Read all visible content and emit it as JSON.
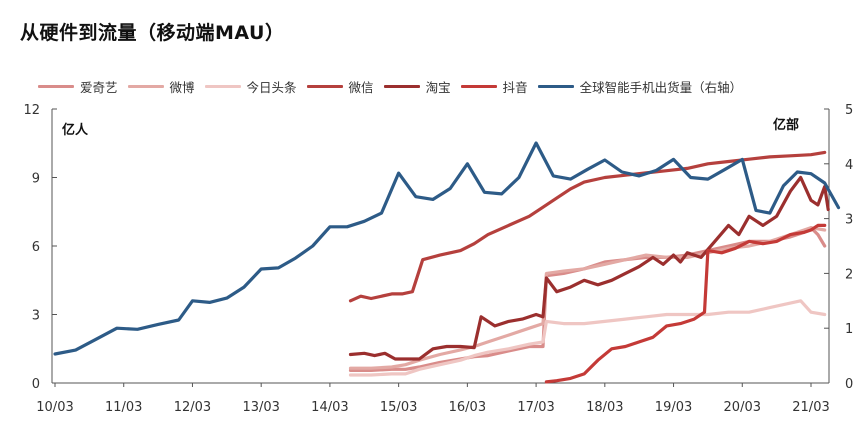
{
  "title": "从硬件到流量（移动端MAU）",
  "chart_data": {
    "type": "line",
    "title": "从硬件到流量（移动端MAU）",
    "left_unit": "亿人",
    "right_unit": "亿部",
    "x_ticks": [
      "10/03",
      "11/03",
      "12/03",
      "13/03",
      "14/03",
      "15/03",
      "16/03",
      "17/03",
      "18/03",
      "19/03",
      "20/03",
      "21/03"
    ],
    "ylim_left": [
      0,
      12
    ],
    "yticks_left": [
      "0",
      "3",
      "6",
      "9",
      "12"
    ],
    "ylim_right": [
      0,
      5
    ],
    "yticks_right": [
      "0",
      "1",
      "2",
      "3",
      "4",
      "5"
    ],
    "grid": false,
    "legend_position": "top",
    "series": [
      {
        "name": "爱奇艺",
        "axis": "left",
        "color": "#d98c8a",
        "points": [
          [
            14.3,
            0.55
          ],
          [
            14.6,
            0.55
          ],
          [
            14.9,
            0.6
          ],
          [
            15.1,
            0.6
          ],
          [
            15.3,
            0.7
          ],
          [
            15.6,
            0.9
          ],
          [
            15.9,
            1.05
          ],
          [
            16.1,
            1.15
          ],
          [
            16.3,
            1.2
          ],
          [
            16.6,
            1.4
          ],
          [
            16.9,
            1.6
          ],
          [
            17.1,
            1.6
          ],
          [
            17.15,
            4.7
          ],
          [
            17.4,
            4.8
          ],
          [
            17.7,
            5.0
          ],
          [
            18.0,
            5.3
          ],
          [
            18.3,
            5.4
          ],
          [
            18.6,
            5.5
          ],
          [
            18.9,
            5.5
          ],
          [
            19.2,
            5.6
          ],
          [
            19.5,
            5.8
          ],
          [
            19.8,
            6.0
          ],
          [
            20.1,
            6.2
          ],
          [
            20.4,
            6.2
          ],
          [
            20.7,
            6.4
          ],
          [
            20.9,
            6.6
          ],
          [
            21.0,
            6.8
          ],
          [
            21.1,
            6.5
          ],
          [
            21.2,
            6.0
          ]
        ]
      },
      {
        "name": "微博",
        "axis": "left",
        "color": "#e3a9a4",
        "points": [
          [
            14.3,
            0.65
          ],
          [
            14.6,
            0.65
          ],
          [
            14.9,
            0.7
          ],
          [
            15.1,
            0.8
          ],
          [
            15.3,
            1.0
          ],
          [
            15.6,
            1.25
          ],
          [
            15.9,
            1.45
          ],
          [
            16.1,
            1.6
          ],
          [
            16.3,
            1.8
          ],
          [
            16.6,
            2.1
          ],
          [
            16.9,
            2.4
          ],
          [
            17.1,
            2.6
          ],
          [
            17.15,
            4.8
          ],
          [
            17.4,
            4.9
          ],
          [
            17.7,
            5.0
          ],
          [
            18.0,
            5.2
          ],
          [
            18.3,
            5.4
          ],
          [
            18.6,
            5.6
          ],
          [
            18.9,
            5.5
          ],
          [
            19.2,
            5.5
          ],
          [
            19.5,
            5.7
          ],
          [
            19.8,
            5.9
          ],
          [
            20.1,
            6.0
          ],
          [
            20.4,
            6.2
          ],
          [
            20.7,
            6.5
          ],
          [
            20.9,
            6.7
          ],
          [
            21.0,
            6.8
          ],
          [
            21.2,
            6.7
          ]
        ]
      },
      {
        "name": "今日头条",
        "axis": "left",
        "color": "#efc6c3",
        "points": [
          [
            14.3,
            0.35
          ],
          [
            14.6,
            0.35
          ],
          [
            14.9,
            0.4
          ],
          [
            15.1,
            0.4
          ],
          [
            15.3,
            0.6
          ],
          [
            15.6,
            0.8
          ],
          [
            15.9,
            1.0
          ],
          [
            16.1,
            1.2
          ],
          [
            16.3,
            1.35
          ],
          [
            16.6,
            1.5
          ],
          [
            16.9,
            1.7
          ],
          [
            17.1,
            1.8
          ],
          [
            17.15,
            2.7
          ],
          [
            17.4,
            2.6
          ],
          [
            17.7,
            2.6
          ],
          [
            18.0,
            2.7
          ],
          [
            18.3,
            2.8
          ],
          [
            18.6,
            2.9
          ],
          [
            18.9,
            3.0
          ],
          [
            19.2,
            3.0
          ],
          [
            19.5,
            3.0
          ],
          [
            19.8,
            3.1
          ],
          [
            20.1,
            3.1
          ],
          [
            20.4,
            3.3
          ],
          [
            20.7,
            3.5
          ],
          [
            20.85,
            3.6
          ],
          [
            21.0,
            3.1
          ],
          [
            21.2,
            3.0
          ]
        ]
      },
      {
        "name": "微信",
        "axis": "left",
        "color": "#b5403d",
        "points": [
          [
            14.3,
            3.6
          ],
          [
            14.45,
            3.8
          ],
          [
            14.6,
            3.7
          ],
          [
            14.9,
            3.9
          ],
          [
            15.05,
            3.9
          ],
          [
            15.2,
            4.0
          ],
          [
            15.35,
            5.4
          ],
          [
            15.6,
            5.6
          ],
          [
            15.9,
            5.8
          ],
          [
            16.1,
            6.1
          ],
          [
            16.3,
            6.5
          ],
          [
            16.6,
            6.9
          ],
          [
            16.9,
            7.3
          ],
          [
            17.1,
            7.7
          ],
          [
            17.3,
            8.1
          ],
          [
            17.5,
            8.5
          ],
          [
            17.7,
            8.8
          ],
          [
            18.0,
            9.0
          ],
          [
            18.3,
            9.1
          ],
          [
            18.6,
            9.2
          ],
          [
            18.9,
            9.3
          ],
          [
            19.2,
            9.4
          ],
          [
            19.5,
            9.6
          ],
          [
            19.8,
            9.7
          ],
          [
            20.1,
            9.8
          ],
          [
            20.4,
            9.9
          ],
          [
            20.7,
            9.95
          ],
          [
            21.0,
            10.0
          ],
          [
            21.2,
            10.1
          ]
        ]
      },
      {
        "name": "淘宝",
        "axis": "left",
        "color": "#9b2f2e",
        "points": [
          [
            14.3,
            1.25
          ],
          [
            14.5,
            1.3
          ],
          [
            14.65,
            1.2
          ],
          [
            14.8,
            1.3
          ],
          [
            14.95,
            1.05
          ],
          [
            15.1,
            1.05
          ],
          [
            15.3,
            1.05
          ],
          [
            15.5,
            1.5
          ],
          [
            15.7,
            1.6
          ],
          [
            15.9,
            1.6
          ],
          [
            16.1,
            1.55
          ],
          [
            16.2,
            2.9
          ],
          [
            16.4,
            2.5
          ],
          [
            16.6,
            2.7
          ],
          [
            16.8,
            2.8
          ],
          [
            17.0,
            3.0
          ],
          [
            17.1,
            2.9
          ],
          [
            17.15,
            4.6
          ],
          [
            17.3,
            4.0
          ],
          [
            17.5,
            4.2
          ],
          [
            17.7,
            4.5
          ],
          [
            17.9,
            4.3
          ],
          [
            18.1,
            4.5
          ],
          [
            18.3,
            4.8
          ],
          [
            18.5,
            5.1
          ],
          [
            18.7,
            5.5
          ],
          [
            18.85,
            5.2
          ],
          [
            19.0,
            5.6
          ],
          [
            19.1,
            5.3
          ],
          [
            19.2,
            5.7
          ],
          [
            19.4,
            5.5
          ],
          [
            19.6,
            6.2
          ],
          [
            19.8,
            6.9
          ],
          [
            19.95,
            6.5
          ],
          [
            20.1,
            7.3
          ],
          [
            20.3,
            6.9
          ],
          [
            20.5,
            7.3
          ],
          [
            20.7,
            8.4
          ],
          [
            20.85,
            9.0
          ],
          [
            21.0,
            8.0
          ],
          [
            21.1,
            7.8
          ],
          [
            21.2,
            8.6
          ],
          [
            21.25,
            7.6
          ]
        ]
      },
      {
        "name": "抖音",
        "axis": "left",
        "color": "#c43a37",
        "points": [
          [
            17.15,
            0.05
          ],
          [
            17.3,
            0.1
          ],
          [
            17.5,
            0.2
          ],
          [
            17.7,
            0.4
          ],
          [
            17.9,
            1.0
          ],
          [
            18.1,
            1.5
          ],
          [
            18.3,
            1.6
          ],
          [
            18.5,
            1.8
          ],
          [
            18.7,
            2.0
          ],
          [
            18.9,
            2.5
          ],
          [
            19.1,
            2.6
          ],
          [
            19.3,
            2.8
          ],
          [
            19.45,
            3.1
          ],
          [
            19.5,
            5.8
          ],
          [
            19.7,
            5.7
          ],
          [
            19.9,
            5.9
          ],
          [
            20.1,
            6.2
          ],
          [
            20.3,
            6.1
          ],
          [
            20.5,
            6.2
          ],
          [
            20.7,
            6.5
          ],
          [
            20.9,
            6.6
          ],
          [
            21.0,
            6.7
          ],
          [
            21.1,
            6.9
          ],
          [
            21.2,
            6.9
          ]
        ]
      },
      {
        "name": "全球智能手机出货量（右轴）",
        "axis": "right",
        "color": "#2d5b87",
        "points": [
          [
            10.0,
            0.53
          ],
          [
            10.3,
            0.6
          ],
          [
            10.6,
            0.8
          ],
          [
            10.9,
            1.0
          ],
          [
            11.2,
            0.98
          ],
          [
            11.5,
            1.07
          ],
          [
            11.8,
            1.15
          ],
          [
            12.0,
            1.5
          ],
          [
            12.25,
            1.47
          ],
          [
            12.5,
            1.55
          ],
          [
            12.75,
            1.75
          ],
          [
            13.0,
            2.08
          ],
          [
            13.25,
            2.1
          ],
          [
            13.5,
            2.28
          ],
          [
            13.75,
            2.5
          ],
          [
            14.0,
            2.85
          ],
          [
            14.25,
            2.85
          ],
          [
            14.5,
            2.95
          ],
          [
            14.75,
            3.1
          ],
          [
            15.0,
            3.83
          ],
          [
            15.25,
            3.4
          ],
          [
            15.5,
            3.35
          ],
          [
            15.75,
            3.55
          ],
          [
            16.0,
            4.0
          ],
          [
            16.25,
            3.48
          ],
          [
            16.5,
            3.45
          ],
          [
            16.75,
            3.75
          ],
          [
            17.0,
            4.38
          ],
          [
            17.25,
            3.78
          ],
          [
            17.5,
            3.72
          ],
          [
            17.75,
            3.9
          ],
          [
            18.0,
            4.07
          ],
          [
            18.25,
            3.85
          ],
          [
            18.5,
            3.78
          ],
          [
            18.75,
            3.88
          ],
          [
            19.0,
            4.08
          ],
          [
            19.25,
            3.75
          ],
          [
            19.5,
            3.72
          ],
          [
            19.75,
            3.9
          ],
          [
            20.0,
            4.08
          ],
          [
            20.2,
            3.15
          ],
          [
            20.4,
            3.1
          ],
          [
            20.6,
            3.6
          ],
          [
            20.8,
            3.85
          ],
          [
            21.0,
            3.82
          ],
          [
            21.2,
            3.65
          ],
          [
            21.4,
            3.2
          ]
        ]
      }
    ]
  }
}
